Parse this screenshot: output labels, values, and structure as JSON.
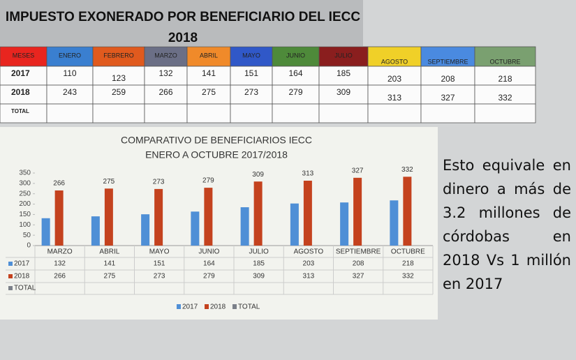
{
  "header": {
    "title": "IMPUESTO EXONERADO POR BENEFICIARIO DEL IECC",
    "year": "2018"
  },
  "table": {
    "columns": [
      {
        "label": "MESES",
        "color": "#e8251f"
      },
      {
        "label": "ENERO",
        "color": "#3a7fd0"
      },
      {
        "label": "FEBRERO",
        "color": "#e05a1e"
      },
      {
        "label": "MARZO",
        "color": "#6b6f86"
      },
      {
        "label": "ABRIL",
        "color": "#f08a2a"
      },
      {
        "label": "MAYO",
        "color": "#3058c8"
      },
      {
        "label": "JUNIO",
        "color": "#4e8a3a"
      },
      {
        "label": "JULIO",
        "color": "#8a1e1e"
      },
      {
        "label": "AGOSTO",
        "color": "#f0d028"
      },
      {
        "label": "SEPTIEMBRE",
        "color": "#4a8ae0"
      },
      {
        "label": "OCTUBRE",
        "color": "#7aa070"
      }
    ],
    "rows": [
      [
        "2017",
        110,
        123,
        132,
        141,
        151,
        164,
        185,
        203,
        208,
        218
      ],
      [
        "2018",
        243,
        259,
        266,
        275,
        273,
        279,
        309,
        313,
        327,
        332
      ],
      [
        "TOTAL"
      ]
    ]
  },
  "chart_data": {
    "type": "bar",
    "title": "COMPARATIVO DE BENEFICIARIOS  IECC",
    "subtitle": "ENERO A OCTUBRE  2017/2018",
    "categories": [
      "MARZO",
      "ABRIL",
      "MAYO",
      "JUNIO",
      "JULIO",
      "AGOSTO",
      "SEPTIEMBRE",
      "OCTUBRE"
    ],
    "series": [
      {
        "name": "2017",
        "color": "#4f8fd6",
        "values": [
          132,
          141,
          151,
          164,
          185,
          203,
          208,
          218
        ]
      },
      {
        "name": "2018",
        "color": "#c4421e",
        "values": [
          266,
          275,
          273,
          279,
          309,
          313,
          327,
          332
        ]
      },
      {
        "name": "TOTAL",
        "color": "#7b8089",
        "values": [
          null,
          null,
          null,
          null,
          null,
          null,
          null,
          null
        ]
      }
    ],
    "labeled_series": "2018",
    "ylim": [
      0,
      350
    ],
    "yticks": [
      0,
      50,
      100,
      150,
      200,
      250,
      300,
      350
    ],
    "grid": false
  },
  "note": "Esto equivale en dinero a más de 3.2 millones de córdobas en 2018 Vs 1 millón en 2017"
}
